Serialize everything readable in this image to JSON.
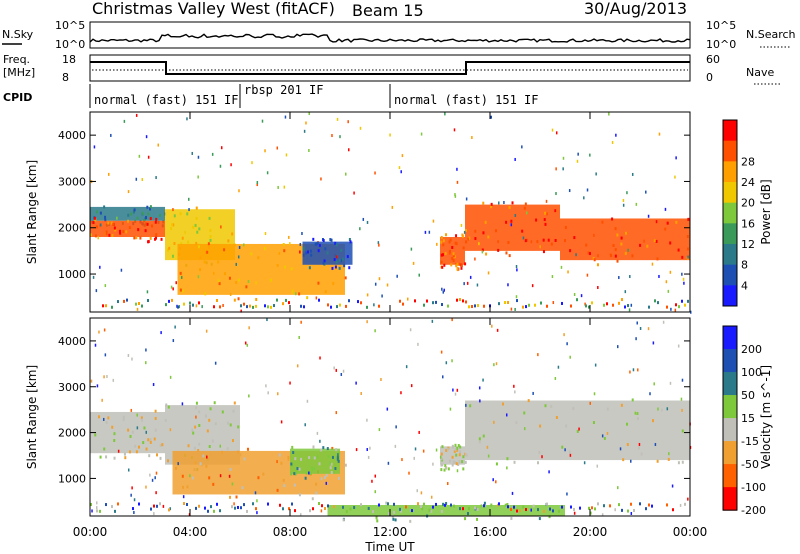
{
  "header": {
    "title": "Christmas Valley West (fitACF)",
    "beam": "Beam 15",
    "date": "30/Aug/2013"
  },
  "panels": {
    "nsky_label": "N.Sky",
    "nsky_ticks": [
      "10^5",
      "10^0"
    ],
    "nsearch_label": "N.Search",
    "nsearch_ticks": [
      "10^5",
      "10^0"
    ],
    "freq_label": "Freq.",
    "freq_unit": "[MHz]",
    "freq_ticks": [
      "18",
      "8"
    ],
    "nave_label": "Nave",
    "nave_ticks": [
      "60",
      "0"
    ],
    "cpid_label": "CPID",
    "cpid_segments": [
      {
        "label": "normal (fast) 151 IF",
        "start_h": 0,
        "end_h": 6
      },
      {
        "label": "rbsp 201 IF",
        "start_h": 6,
        "end_h": 12
      },
      {
        "label": "normal (fast) 151 IF",
        "start_h": 12,
        "end_h": 24
      }
    ]
  },
  "chart_data": [
    {
      "type": "heatmap",
      "name": "power",
      "ylabel": "Slant Range [km]",
      "yticks": [
        "1000",
        "2000",
        "3000",
        "4000"
      ],
      "ylim": [
        180,
        4500
      ],
      "colorbar_label": "Power [dB]",
      "colorbar_ticks": [
        "4",
        "8",
        "12",
        "16",
        "20",
        "24",
        "28"
      ],
      "colors": [
        "#1a1aff",
        "#1e50b4",
        "#2a7a8a",
        "#3a9a5a",
        "#7ec83c",
        "#f0c800",
        "#ffa000",
        "#ff5000",
        "#ff0000"
      ],
      "bands": [
        {
          "t0": 0.0,
          "t1": 3.0,
          "r0": 2150,
          "r1": 2450,
          "c": 2
        },
        {
          "t0": 0.0,
          "t1": 3.0,
          "r0": 1800,
          "r1": 2150,
          "c": 7
        },
        {
          "t0": 3.0,
          "t1": 5.8,
          "r0": 1300,
          "r1": 2400,
          "c": 5
        },
        {
          "t0": 3.5,
          "t1": 10.2,
          "r0": 550,
          "r1": 1650,
          "c": 6
        },
        {
          "t0": 8.5,
          "t1": 10.5,
          "r0": 1200,
          "r1": 1700,
          "c": 1
        },
        {
          "t0": 14.0,
          "t1": 15.0,
          "r0": 1200,
          "r1": 1800,
          "c": 7
        },
        {
          "t0": 15.0,
          "t1": 18.8,
          "r0": 1500,
          "r1": 2500,
          "c": 7
        },
        {
          "t0": 18.8,
          "t1": 24.0,
          "r0": 1300,
          "r1": 2200,
          "c": 7
        }
      ]
    },
    {
      "type": "heatmap",
      "name": "velocity",
      "ylabel": "Slant Range [km]",
      "yticks": [
        "1000",
        "2000",
        "3000",
        "4000"
      ],
      "ylim": [
        180,
        4500
      ],
      "colorbar_label": "Velocity [m s^-1]",
      "colorbar_ticks": [
        "200",
        "100",
        "50",
        "15",
        "-15",
        "-50",
        "-100",
        "-200"
      ],
      "colors": [
        "#1a1aff",
        "#1e50b4",
        "#2a7a8a",
        "#7ec83c",
        "#c0c0b8",
        "#f0a030",
        "#ff6000",
        "#ff0000"
      ],
      "bands": [
        {
          "t0": 0.0,
          "t1": 3.0,
          "r0": 1550,
          "r1": 2450,
          "c": 4
        },
        {
          "t0": 3.0,
          "t1": 6.0,
          "r0": 1300,
          "r1": 2600,
          "c": 4
        },
        {
          "t0": 3.3,
          "t1": 10.2,
          "r0": 650,
          "r1": 1600,
          "c": 5
        },
        {
          "t0": 8.0,
          "t1": 10.0,
          "r0": 1100,
          "r1": 1650,
          "c": 3
        },
        {
          "t0": 14.0,
          "t1": 15.0,
          "r0": 1300,
          "r1": 1700,
          "c": 4
        },
        {
          "t0": 15.0,
          "t1": 24.0,
          "r0": 1400,
          "r1": 2700,
          "c": 4
        },
        {
          "t0": 9.5,
          "t1": 19.0,
          "r0": 180,
          "r1": 420,
          "c": 3
        }
      ]
    }
  ],
  "x_axis": {
    "label": "Time UT",
    "ticks": [
      "00:00",
      "04:00",
      "08:00",
      "12:00",
      "16:00",
      "20:00",
      "00:00"
    ],
    "range_hours": [
      0,
      24
    ]
  }
}
